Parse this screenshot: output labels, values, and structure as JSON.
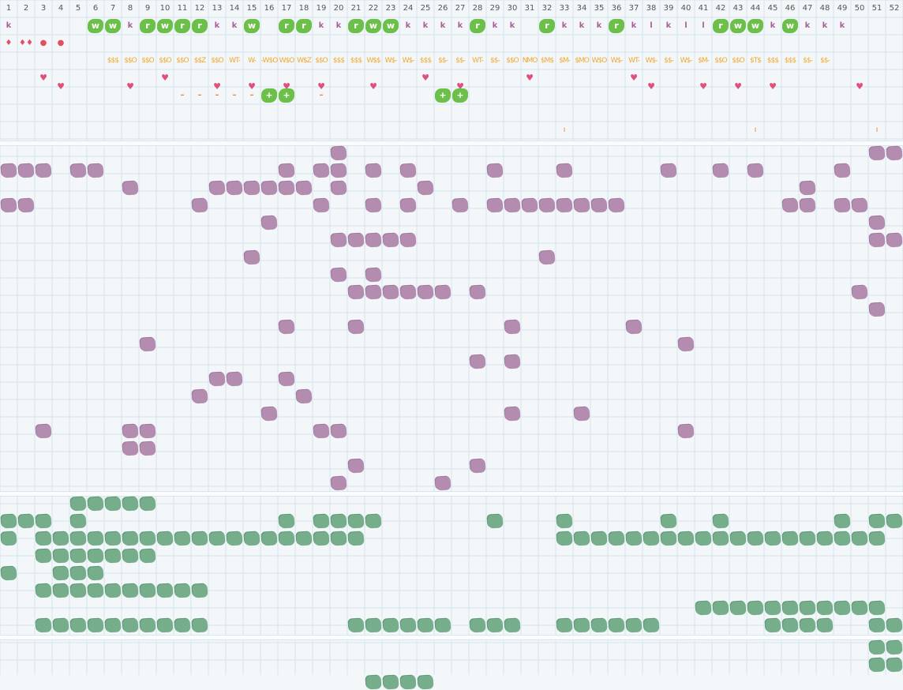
{
  "columns": [
    "1",
    "2",
    "3",
    "4",
    "5",
    "6",
    "7",
    "8",
    "9",
    "10",
    "11",
    "12",
    "13",
    "14",
    "15",
    "16",
    "17",
    "18",
    "19",
    "20",
    "21",
    "22",
    "23",
    "24",
    "25",
    "26",
    "27",
    "28",
    "29",
    "30",
    "31",
    "32",
    "33",
    "34",
    "35",
    "36",
    "37",
    "38",
    "39",
    "40",
    "41",
    "42",
    "43",
    "44",
    "45",
    "46",
    "47",
    "48",
    "49",
    "50",
    "51",
    "52"
  ],
  "colors": {
    "grid": "#d6e6ec",
    "purple": "#b48cb0",
    "green": "#76ad8a",
    "badge": "#6cc04a",
    "heart": "#e0507a",
    "currency": "#f0a830",
    "k": "#a8609c"
  },
  "top_rows": {
    "row1": [
      [
        "1",
        "k"
      ],
      [
        "6",
        "w"
      ],
      [
        "7",
        "w"
      ],
      [
        "8",
        "k"
      ],
      [
        "9",
        "r"
      ],
      [
        "10",
        "w"
      ],
      [
        "11",
        "r"
      ],
      [
        "12",
        "r"
      ],
      [
        "13",
        "k"
      ],
      [
        "14",
        "k"
      ],
      [
        "15",
        "w"
      ],
      [
        "17",
        "r"
      ],
      [
        "18",
        "r"
      ],
      [
        "19",
        "k"
      ],
      [
        "20",
        "k"
      ],
      [
        "21",
        "r"
      ],
      [
        "22",
        "w"
      ],
      [
        "23",
        "w"
      ],
      [
        "24",
        "k"
      ],
      [
        "25",
        "k"
      ],
      [
        "26",
        "k"
      ],
      [
        "27",
        "k"
      ],
      [
        "28",
        "r"
      ],
      [
        "29",
        "k"
      ],
      [
        "30",
        "k"
      ],
      [
        "32",
        "r"
      ],
      [
        "33",
        "k"
      ],
      [
        "34",
        "k"
      ],
      [
        "35",
        "k"
      ],
      [
        "36",
        "r"
      ],
      [
        "37",
        "k"
      ],
      [
        "38",
        "l"
      ],
      [
        "39",
        "k"
      ],
      [
        "40",
        "l"
      ],
      [
        "41",
        "l"
      ],
      [
        "42",
        "r"
      ],
      [
        "43",
        "w"
      ],
      [
        "44",
        "w"
      ],
      [
        "45",
        "k"
      ],
      [
        "46",
        "w"
      ],
      [
        "47",
        "k"
      ],
      [
        "48",
        "k"
      ],
      [
        "49",
        "k"
      ]
    ],
    "row2": [
      [
        "1",
        "♦"
      ],
      [
        "2",
        "♦♦"
      ],
      [
        "3",
        "●"
      ],
      [
        "4",
        "●"
      ]
    ],
    "row3": [
      [
        "7",
        "$$$"
      ],
      [
        "8",
        "$$O"
      ],
      [
        "9",
        "$$O"
      ],
      [
        "10",
        "$$O"
      ],
      [
        "11",
        "$$O"
      ],
      [
        "12",
        "$$Z"
      ],
      [
        "13",
        "$$O"
      ],
      [
        "14",
        "WT-"
      ],
      [
        "15",
        "W-"
      ],
      [
        "16",
        "-W$O"
      ],
      [
        "17",
        "W$O"
      ],
      [
        "18",
        "W$Z"
      ],
      [
        "19",
        "$$O"
      ],
      [
        "20",
        "$$$"
      ],
      [
        "21",
        "$$$"
      ],
      [
        "22",
        "W$$"
      ],
      [
        "23",
        "W$-"
      ],
      [
        "24",
        "W$-"
      ],
      [
        "25",
        "$$$"
      ],
      [
        "26",
        "$$-"
      ],
      [
        "27",
        "$$-"
      ],
      [
        "28",
        "WT-"
      ],
      [
        "29",
        "$$-"
      ],
      [
        "30",
        "$$O"
      ],
      [
        "31",
        "NMO"
      ],
      [
        "32",
        "$M$"
      ],
      [
        "33",
        "$M-"
      ],
      [
        "34",
        "$MO"
      ],
      [
        "35",
        "W$O"
      ],
      [
        "36",
        "W$-"
      ],
      [
        "37",
        "WT-"
      ],
      [
        "38",
        "W$-"
      ],
      [
        "39",
        "$$-"
      ],
      [
        "40",
        "W$-"
      ],
      [
        "41",
        "$M-"
      ],
      [
        "42",
        "$$O"
      ],
      [
        "43",
        "$$O"
      ],
      [
        "44",
        "$T$"
      ],
      [
        "45",
        "$$$"
      ],
      [
        "46",
        "$$$"
      ],
      [
        "47",
        "$$-"
      ],
      [
        "48",
        "$$-"
      ]
    ],
    "row4_hearts": [
      3,
      4,
      8,
      10,
      13,
      15,
      17,
      19,
      22,
      25,
      27,
      31,
      37,
      38,
      41,
      43,
      45,
      50
    ],
    "row5_dashes": [
      11,
      12,
      13,
      14,
      15,
      19
    ],
    "row5_plus": [
      16,
      17,
      26,
      27
    ],
    "row7_ticks": [
      33,
      44,
      51
    ]
  },
  "purple_blobs": [
    [
      20,
      1
    ],
    [
      51,
      1
    ],
    [
      52,
      1
    ],
    [
      1,
      2
    ],
    [
      2,
      2
    ],
    [
      3,
      2
    ],
    [
      5,
      2
    ],
    [
      6,
      2
    ],
    [
      17,
      2
    ],
    [
      19,
      2
    ],
    [
      20,
      2
    ],
    [
      22,
      2
    ],
    [
      24,
      2
    ],
    [
      29,
      2
    ],
    [
      33,
      2
    ],
    [
      39,
      2
    ],
    [
      42,
      2
    ],
    [
      44,
      2
    ],
    [
      49,
      2
    ],
    [
      8,
      3
    ],
    [
      13,
      3
    ],
    [
      14,
      3
    ],
    [
      15,
      3
    ],
    [
      16,
      3
    ],
    [
      17,
      3
    ],
    [
      18,
      3
    ],
    [
      20,
      3
    ],
    [
      25,
      3
    ],
    [
      47,
      3
    ],
    [
      1,
      4
    ],
    [
      2,
      4
    ],
    [
      12,
      4
    ],
    [
      19,
      4
    ],
    [
      22,
      4
    ],
    [
      24,
      4
    ],
    [
      27,
      4
    ],
    [
      29,
      4
    ],
    [
      30,
      4
    ],
    [
      31,
      4
    ],
    [
      32,
      4
    ],
    [
      33,
      4
    ],
    [
      34,
      4
    ],
    [
      35,
      4
    ],
    [
      36,
      4
    ],
    [
      46,
      4
    ],
    [
      47,
      4
    ],
    [
      49,
      4
    ],
    [
      50,
      4
    ],
    [
      16,
      5
    ],
    [
      51,
      5
    ],
    [
      20,
      6
    ],
    [
      21,
      6
    ],
    [
      22,
      6
    ],
    [
      23,
      6
    ],
    [
      24,
      6
    ],
    [
      51,
      6
    ],
    [
      52,
      6
    ],
    [
      15,
      7
    ],
    [
      32,
      7
    ],
    [
      20,
      8
    ],
    [
      22,
      8
    ],
    [
      21,
      9
    ],
    [
      22,
      9
    ],
    [
      23,
      9
    ],
    [
      24,
      9
    ],
    [
      25,
      9
    ],
    [
      26,
      9
    ],
    [
      28,
      9
    ],
    [
      50,
      9
    ],
    [
      51,
      10
    ],
    [
      17,
      11
    ],
    [
      21,
      11
    ],
    [
      30,
      11
    ],
    [
      37,
      11
    ],
    [
      9,
      12
    ],
    [
      40,
      12
    ],
    [
      28,
      13
    ],
    [
      30,
      13
    ],
    [
      13,
      14
    ],
    [
      14,
      14
    ],
    [
      17,
      14
    ],
    [
      12,
      15
    ],
    [
      18,
      15
    ],
    [
      16,
      16
    ],
    [
      30,
      16
    ],
    [
      34,
      16
    ],
    [
      3,
      17
    ],
    [
      8,
      17
    ],
    [
      9,
      17
    ],
    [
      19,
      17
    ],
    [
      20,
      17
    ],
    [
      40,
      17
    ],
    [
      8,
      18
    ],
    [
      9,
      18
    ],
    [
      21,
      19
    ],
    [
      28,
      19
    ],
    [
      20,
      20
    ],
    [
      26,
      20
    ]
  ],
  "green_blobs": [
    [
      5,
      1
    ],
    [
      6,
      1
    ],
    [
      7,
      1
    ],
    [
      8,
      1
    ],
    [
      9,
      1
    ],
    [
      1,
      2
    ],
    [
      2,
      2
    ],
    [
      3,
      2
    ],
    [
      5,
      2
    ],
    [
      17,
      2
    ],
    [
      19,
      2
    ],
    [
      20,
      2
    ],
    [
      21,
      2
    ],
    [
      22,
      2
    ],
    [
      29,
      2
    ],
    [
      33,
      2
    ],
    [
      39,
      2
    ],
    [
      42,
      2
    ],
    [
      49,
      2
    ],
    [
      51,
      2
    ],
    [
      52,
      2
    ],
    [
      1,
      3
    ],
    [
      3,
      3
    ],
    [
      4,
      3
    ],
    [
      5,
      3
    ],
    [
      6,
      3
    ],
    [
      7,
      3
    ],
    [
      8,
      3
    ],
    [
      9,
      3
    ],
    [
      10,
      3
    ],
    [
      11,
      3
    ],
    [
      12,
      3
    ],
    [
      13,
      3
    ],
    [
      14,
      3
    ],
    [
      15,
      3
    ],
    [
      16,
      3
    ],
    [
      17,
      3
    ],
    [
      18,
      3
    ],
    [
      19,
      3
    ],
    [
      20,
      3
    ],
    [
      21,
      3
    ],
    [
      33,
      3
    ],
    [
      34,
      3
    ],
    [
      35,
      3
    ],
    [
      36,
      3
    ],
    [
      37,
      3
    ],
    [
      38,
      3
    ],
    [
      39,
      3
    ],
    [
      40,
      3
    ],
    [
      41,
      3
    ],
    [
      42,
      3
    ],
    [
      43,
      3
    ],
    [
      44,
      3
    ],
    [
      45,
      3
    ],
    [
      46,
      3
    ],
    [
      47,
      3
    ],
    [
      48,
      3
    ],
    [
      49,
      3
    ],
    [
      50,
      3
    ],
    [
      51,
      3
    ],
    [
      3,
      4
    ],
    [
      4,
      4
    ],
    [
      5,
      4
    ],
    [
      6,
      4
    ],
    [
      7,
      4
    ],
    [
      8,
      4
    ],
    [
      9,
      4
    ],
    [
      1,
      5
    ],
    [
      4,
      5
    ],
    [
      5,
      5
    ],
    [
      6,
      5
    ],
    [
      3,
      6
    ],
    [
      4,
      6
    ],
    [
      5,
      6
    ],
    [
      6,
      6
    ],
    [
      7,
      6
    ],
    [
      8,
      6
    ],
    [
      9,
      6
    ],
    [
      10,
      6
    ],
    [
      11,
      6
    ],
    [
      12,
      6
    ],
    [
      41,
      7
    ],
    [
      42,
      7
    ],
    [
      43,
      7
    ],
    [
      44,
      7
    ],
    [
      45,
      7
    ],
    [
      46,
      7
    ],
    [
      47,
      7
    ],
    [
      48,
      7
    ],
    [
      49,
      7
    ],
    [
      50,
      7
    ],
    [
      51,
      7
    ],
    [
      3,
      8
    ],
    [
      4,
      8
    ],
    [
      5,
      8
    ],
    [
      6,
      8
    ],
    [
      7,
      8
    ],
    [
      8,
      8
    ],
    [
      9,
      8
    ],
    [
      10,
      8
    ],
    [
      11,
      8
    ],
    [
      12,
      8
    ],
    [
      21,
      8
    ],
    [
      22,
      8
    ],
    [
      23,
      8
    ],
    [
      24,
      8
    ],
    [
      25,
      8
    ],
    [
      26,
      8
    ],
    [
      28,
      8
    ],
    [
      29,
      8
    ],
    [
      30,
      8
    ],
    [
      33,
      8
    ],
    [
      34,
      8
    ],
    [
      35,
      8
    ],
    [
      36,
      8
    ],
    [
      37,
      8
    ],
    [
      38,
      8
    ],
    [
      45,
      8
    ],
    [
      46,
      8
    ],
    [
      47,
      8
    ],
    [
      48,
      8
    ],
    [
      51,
      8
    ],
    [
      52,
      8
    ]
  ],
  "bottom_green": [
    [
      51,
      1
    ],
    [
      52,
      1
    ],
    [
      51,
      2
    ],
    [
      52,
      2
    ],
    [
      22,
      3
    ],
    [
      23,
      3
    ],
    [
      24,
      3
    ],
    [
      25,
      3
    ]
  ]
}
